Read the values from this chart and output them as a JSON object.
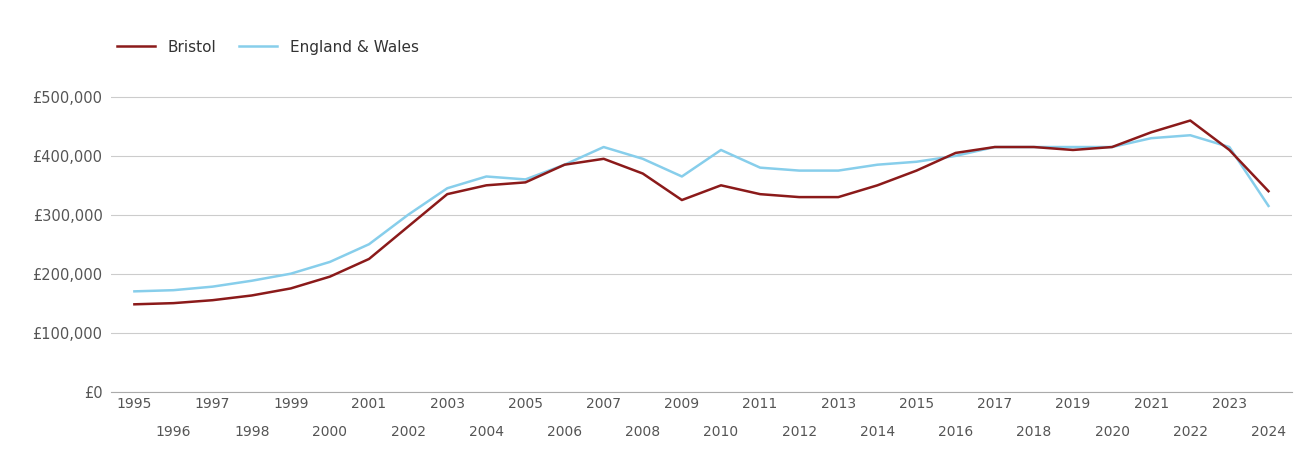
{
  "bristol": {
    "years": [
      1995,
      1996,
      1997,
      1998,
      1999,
      2000,
      2001,
      2002,
      2003,
      2004,
      2005,
      2006,
      2007,
      2008,
      2009,
      2010,
      2011,
      2012,
      2013,
      2014,
      2015,
      2016,
      2017,
      2018,
      2019,
      2020,
      2021,
      2022,
      2023,
      2024
    ],
    "values": [
      148000,
      150000,
      155000,
      163000,
      175000,
      195000,
      225000,
      280000,
      335000,
      350000,
      355000,
      385000,
      395000,
      370000,
      325000,
      350000,
      335000,
      330000,
      330000,
      350000,
      375000,
      405000,
      415000,
      415000,
      410000,
      415000,
      440000,
      460000,
      410000,
      340000
    ]
  },
  "england_wales": {
    "years": [
      1995,
      1996,
      1997,
      1998,
      1999,
      2000,
      2001,
      2002,
      2003,
      2004,
      2005,
      2006,
      2007,
      2008,
      2009,
      2010,
      2011,
      2012,
      2013,
      2014,
      2015,
      2016,
      2017,
      2018,
      2019,
      2020,
      2021,
      2022,
      2023,
      2024
    ],
    "values": [
      170000,
      172000,
      178000,
      188000,
      200000,
      220000,
      250000,
      300000,
      345000,
      365000,
      360000,
      385000,
      415000,
      395000,
      365000,
      410000,
      380000,
      375000,
      375000,
      385000,
      390000,
      400000,
      415000,
      415000,
      415000,
      415000,
      430000,
      435000,
      415000,
      315000
    ]
  },
  "bristol_color": "#8b1a1a",
  "ew_color": "#87ceeb",
  "line_width": 1.8,
  "ylim": [
    0,
    550000
  ],
  "yticks": [
    0,
    100000,
    200000,
    300000,
    400000,
    500000
  ],
  "ytick_labels": [
    "£0",
    "£100,000",
    "£200,000",
    "£300,000",
    "£400,000",
    "£500,000"
  ],
  "xticks_odd": [
    1995,
    1997,
    1999,
    2001,
    2003,
    2005,
    2007,
    2009,
    2011,
    2013,
    2015,
    2017,
    2019,
    2021,
    2023
  ],
  "xticks_even": [
    1996,
    1998,
    2000,
    2002,
    2004,
    2006,
    2008,
    2010,
    2012,
    2014,
    2016,
    2018,
    2020,
    2022,
    2024
  ],
  "grid_color": "#cccccc",
  "background_color": "#ffffff",
  "legend_bristol": "Bristol",
  "legend_ew": "England & Wales",
  "xlim_left": 1994.4,
  "xlim_right": 2024.6
}
